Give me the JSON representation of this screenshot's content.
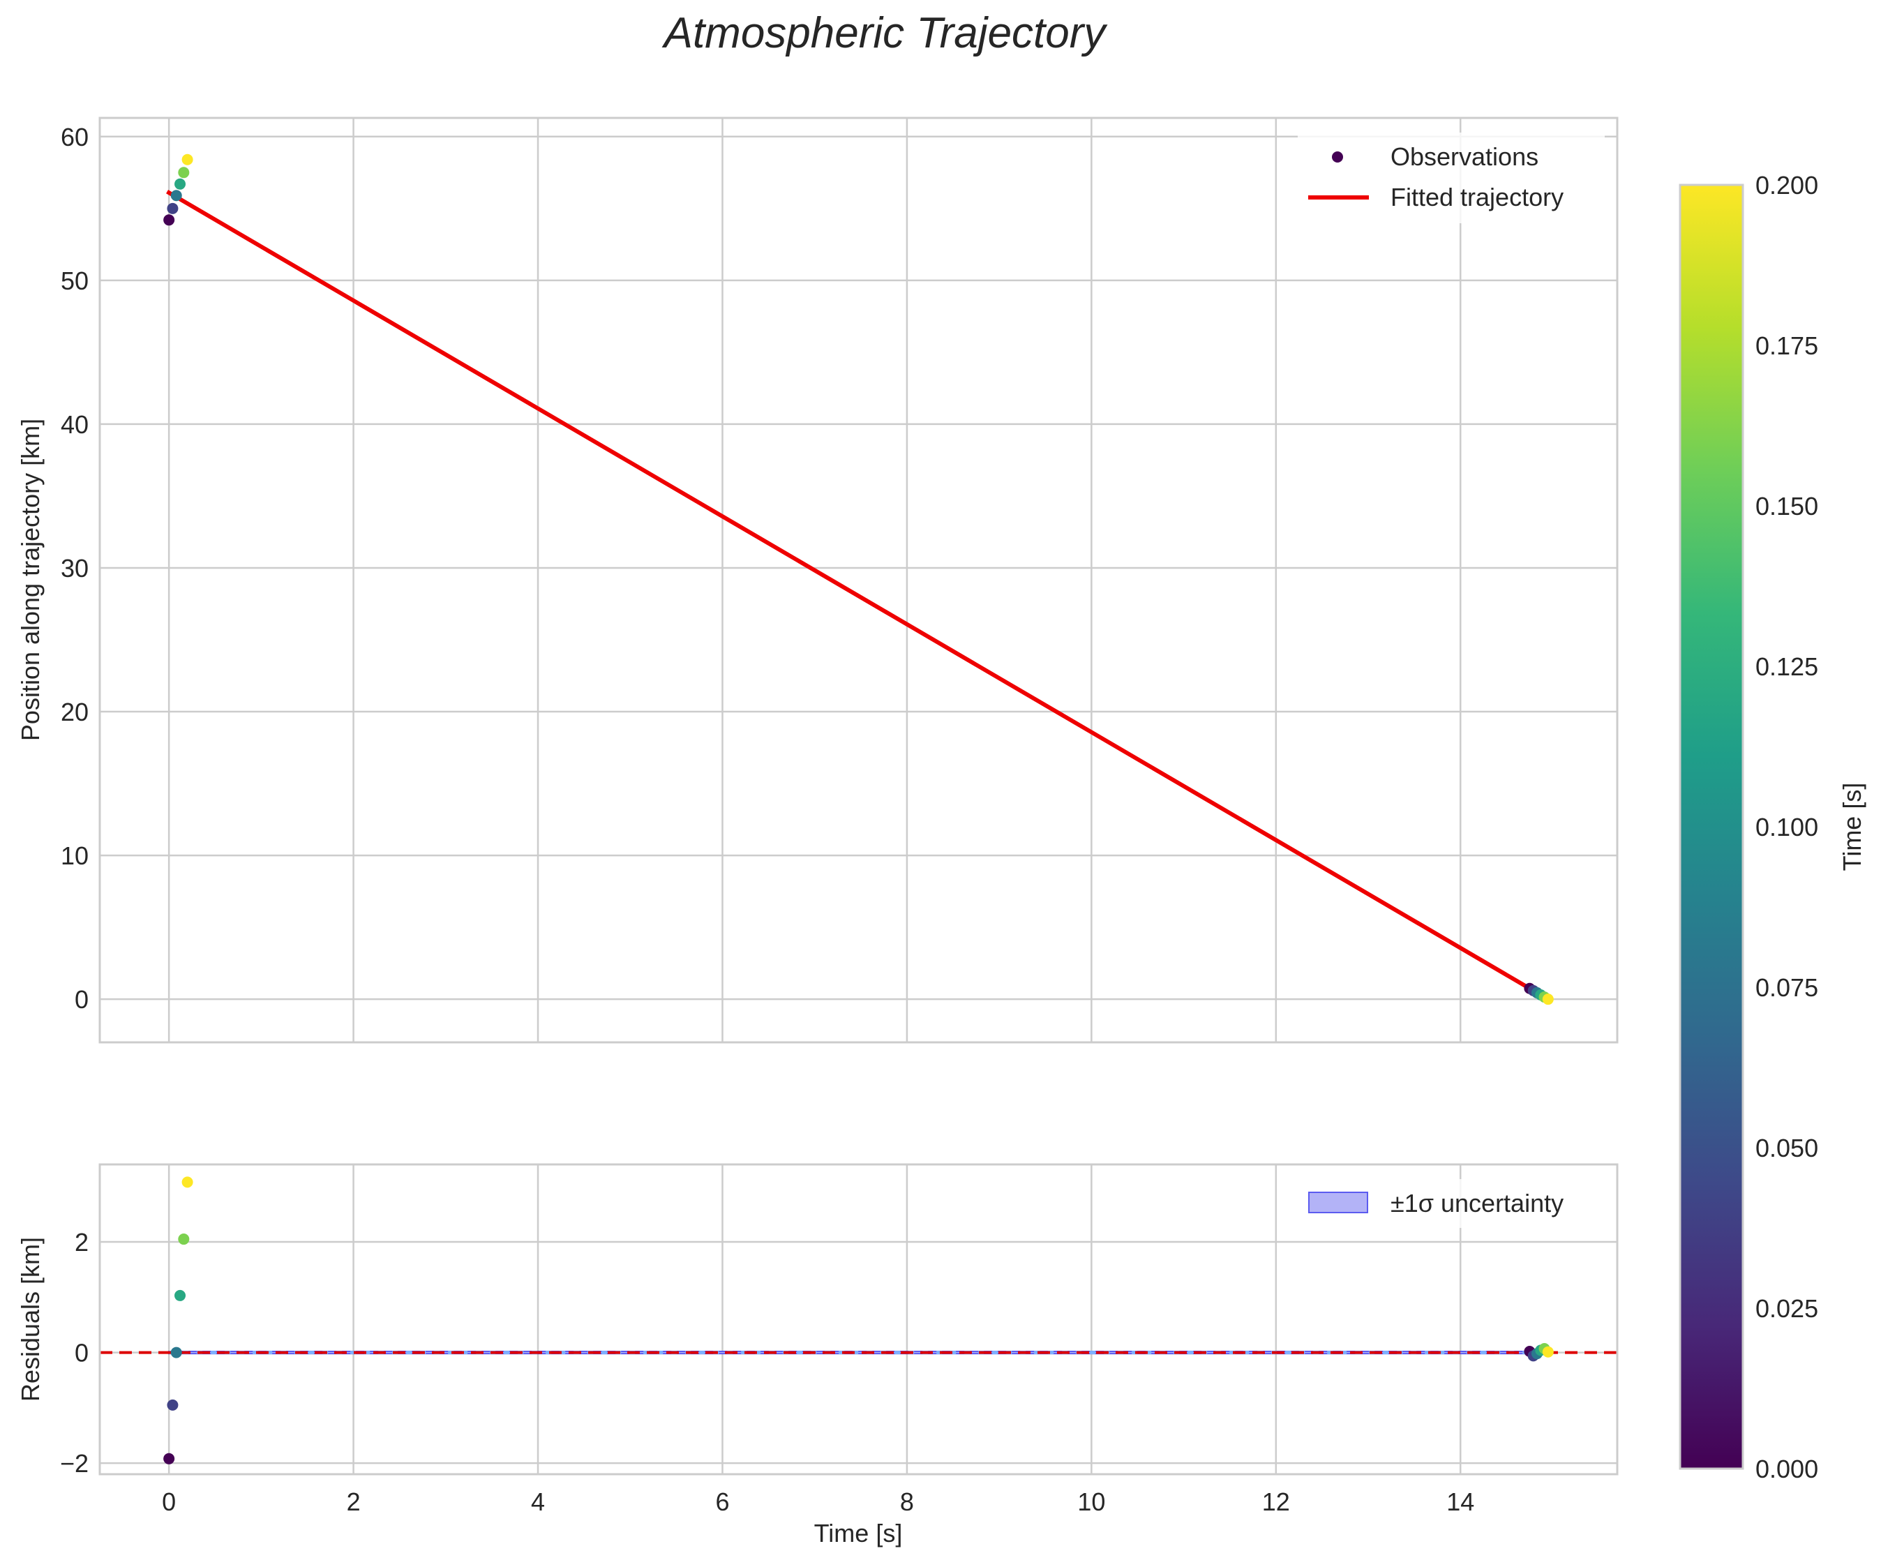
{
  "chart_data": [
    {
      "type": "scatter",
      "panel": "trajectory",
      "title": "Atmospheric Trajectory",
      "xlabel": "",
      "ylabel": "Position along trajectory [km]",
      "xlim": [
        -0.75,
        15.7
      ],
      "ylim": [
        -3,
        61.3
      ],
      "xticks": [
        0,
        2,
        4,
        6,
        8,
        10,
        12,
        14
      ],
      "yticks": [
        0,
        10,
        20,
        30,
        40,
        50,
        60
      ],
      "grid": true,
      "legend": {
        "position": "upper right",
        "entries": [
          "Observations",
          "Fitted trajectory"
        ]
      },
      "series": [
        {
          "name": "Observations",
          "kind": "scatter",
          "colorscale": "viridis",
          "points": [
            {
              "x": 0.0,
              "y": 54.2,
              "c": 0.0
            },
            {
              "x": 0.04,
              "y": 55.0,
              "c": 0.04
            },
            {
              "x": 0.08,
              "y": 55.9,
              "c": 0.08
            },
            {
              "x": 0.12,
              "y": 56.7,
              "c": 0.12
            },
            {
              "x": 0.16,
              "y": 57.5,
              "c": 0.16
            },
            {
              "x": 0.2,
              "y": 58.4,
              "c": 0.2
            },
            {
              "x": 14.75,
              "y": 0.75,
              "c": 0.0
            },
            {
              "x": 14.79,
              "y": 0.6,
              "c": 0.04
            },
            {
              "x": 14.83,
              "y": 0.45,
              "c": 0.08
            },
            {
              "x": 14.87,
              "y": 0.3,
              "c": 0.12
            },
            {
              "x": 14.91,
              "y": 0.15,
              "c": 0.16
            },
            {
              "x": 14.95,
              "y": 0.0,
              "c": 0.2
            }
          ]
        },
        {
          "name": "Fitted trajectory",
          "kind": "line",
          "color": "#ee0000",
          "x": [
            0.0,
            14.95
          ],
          "y": [
            56.1,
            0.0
          ]
        }
      ]
    },
    {
      "type": "scatter",
      "panel": "residuals",
      "xlabel": "Time [s]",
      "ylabel": "Residuals [km]",
      "xlim": [
        -0.75,
        15.7
      ],
      "ylim": [
        -2.2,
        3.4
      ],
      "xticks": [
        0,
        2,
        4,
        6,
        8,
        10,
        12,
        14
      ],
      "xticklabels": [
        "0",
        "2",
        "4",
        "6",
        "8",
        "10",
        "12",
        "14"
      ],
      "yticks": [
        -2,
        0,
        2
      ],
      "yticklabels": [
        "−2",
        "0",
        "2"
      ],
      "grid": true,
      "legend": {
        "position": "upper right",
        "entries": [
          "±1σ uncertainty"
        ]
      },
      "series": [
        {
          "name": "residuals",
          "kind": "scatter",
          "colorscale": "viridis",
          "points": [
            {
              "x": 0.0,
              "y": -1.92,
              "c": 0.0
            },
            {
              "x": 0.04,
              "y": -0.95,
              "c": 0.04
            },
            {
              "x": 0.08,
              "y": 0.0,
              "c": 0.08
            },
            {
              "x": 0.12,
              "y": 1.03,
              "c": 0.12
            },
            {
              "x": 0.16,
              "y": 2.05,
              "c": 0.16
            },
            {
              "x": 0.2,
              "y": 3.08,
              "c": 0.2
            },
            {
              "x": 14.75,
              "y": 0.02,
              "c": 0.0
            },
            {
              "x": 14.79,
              "y": -0.06,
              "c": 0.04
            },
            {
              "x": 14.83,
              "y": -0.02,
              "c": 0.08
            },
            {
              "x": 14.87,
              "y": 0.04,
              "c": 0.12
            },
            {
              "x": 14.91,
              "y": 0.07,
              "c": 0.16
            },
            {
              "x": 14.95,
              "y": 0.01,
              "c": 0.2
            }
          ]
        },
        {
          "name": "zero-line",
          "kind": "hline",
          "y": 0,
          "color": "#dd0000",
          "style": "dashed"
        },
        {
          "name": "±1σ uncertainty",
          "kind": "band",
          "color": "#5b5bf0",
          "x": [
            0.0,
            14.95
          ],
          "lower": [
            -0.02,
            -0.02
          ],
          "upper": [
            0.02,
            0.02
          ]
        }
      ]
    },
    {
      "type": "colorbar",
      "label": "Time [s]",
      "colorscale": "viridis",
      "range": [
        0.0,
        0.2
      ],
      "ticks": [
        0.0,
        0.025,
        0.05,
        0.075,
        0.1,
        0.125,
        0.15,
        0.175,
        0.2
      ],
      "ticklabels": [
        "0.000",
        "0.025",
        "0.050",
        "0.075",
        "0.100",
        "0.125",
        "0.150",
        "0.175",
        "0.200"
      ]
    }
  ],
  "colors": {
    "grid": "#cccccc",
    "frame": "#cccccc",
    "text": "#262626",
    "fit_line": "#ee0000",
    "zero_line": "#dd0000",
    "band_fill": "#b3b3f7",
    "band_edge": "#5b5bf0"
  }
}
